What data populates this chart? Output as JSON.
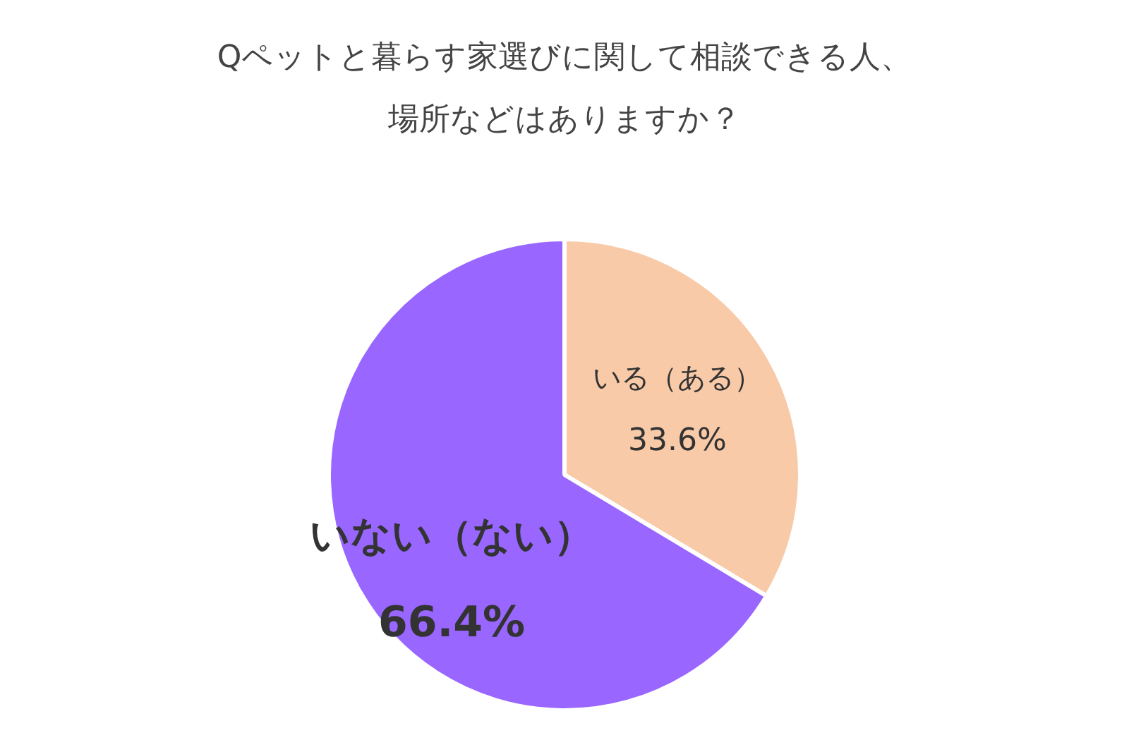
{
  "chart_data": {
    "type": "pie",
    "title": "Qペットと暮らす家選びに関して相談できる人、場所などはありますか？",
    "categories": [
      "いる（ある）",
      "いない（ない）"
    ],
    "values": [
      33.6,
      66.4
    ],
    "colors": [
      "#f8caa8",
      "#9966ff"
    ],
    "value_labels": [
      "33.6%",
      "66.4%"
    ],
    "legend": false
  }
}
